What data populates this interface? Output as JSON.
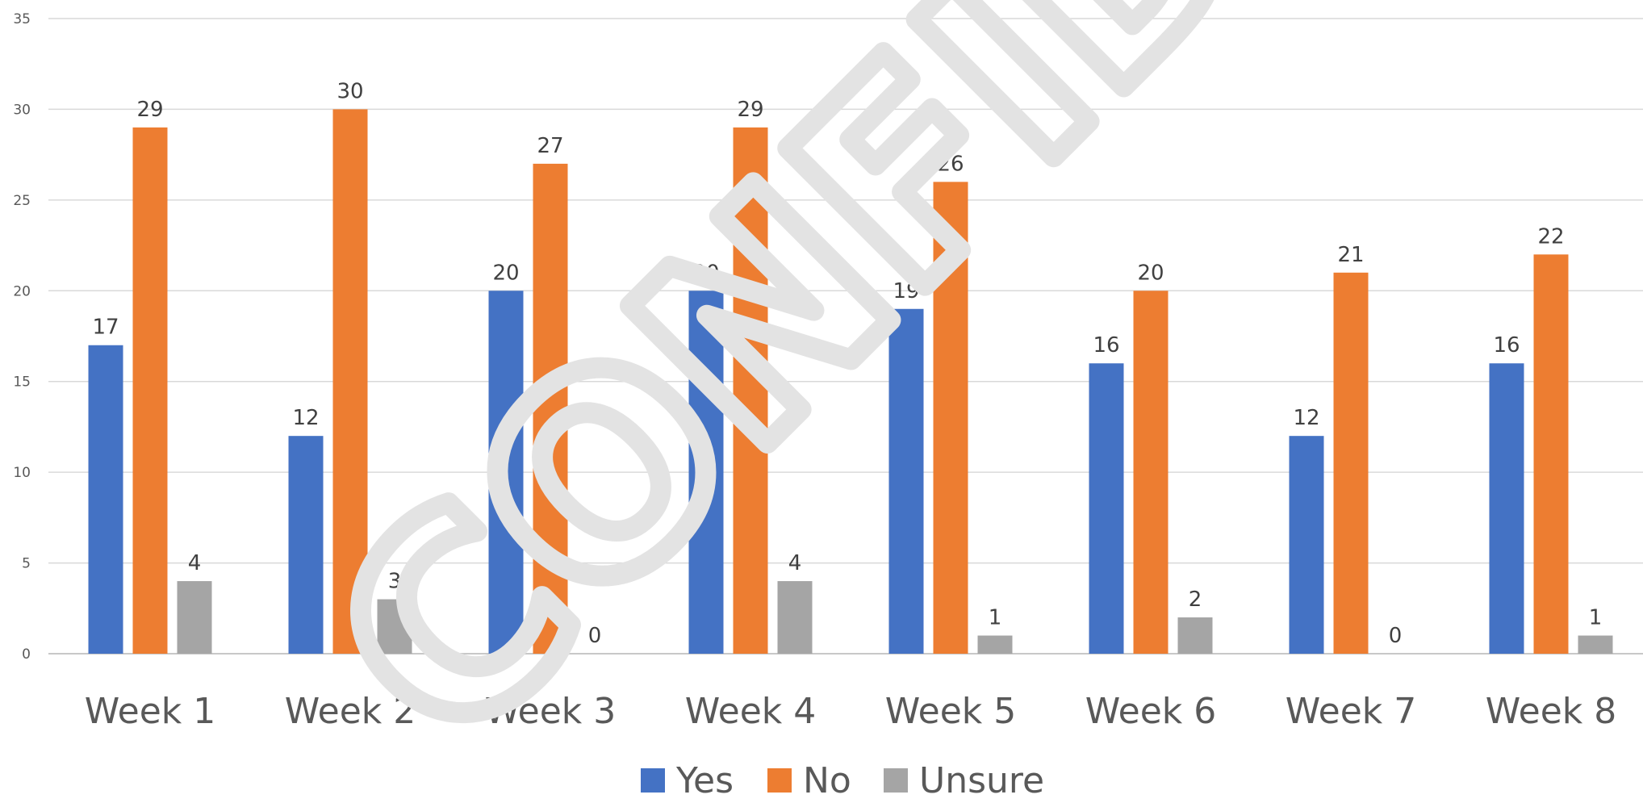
{
  "watermark": "CONFIDENTIAL",
  "chart_data": {
    "type": "bar",
    "categories": [
      "Week 1",
      "Week 2",
      "Week 3",
      "Week 4",
      "Week 5",
      "Week 6",
      "Week 7",
      "Week 8"
    ],
    "series": [
      {
        "name": "Yes",
        "color": "#4472C4",
        "values": [
          17,
          12,
          20,
          20,
          19,
          16,
          12,
          16
        ]
      },
      {
        "name": "No",
        "color": "#ED7D31",
        "values": [
          29,
          30,
          27,
          29,
          26,
          20,
          21,
          22
        ]
      },
      {
        "name": "Unsure",
        "color": "#A5A5A5",
        "values": [
          4,
          3,
          0,
          4,
          1,
          2,
          0,
          1
        ]
      }
    ],
    "ylim": [
      0,
      35
    ],
    "yticks": [
      0,
      5,
      10,
      15,
      20,
      25,
      30,
      35
    ],
    "grid": true,
    "legend_position": "bottom",
    "data_labels": true
  }
}
